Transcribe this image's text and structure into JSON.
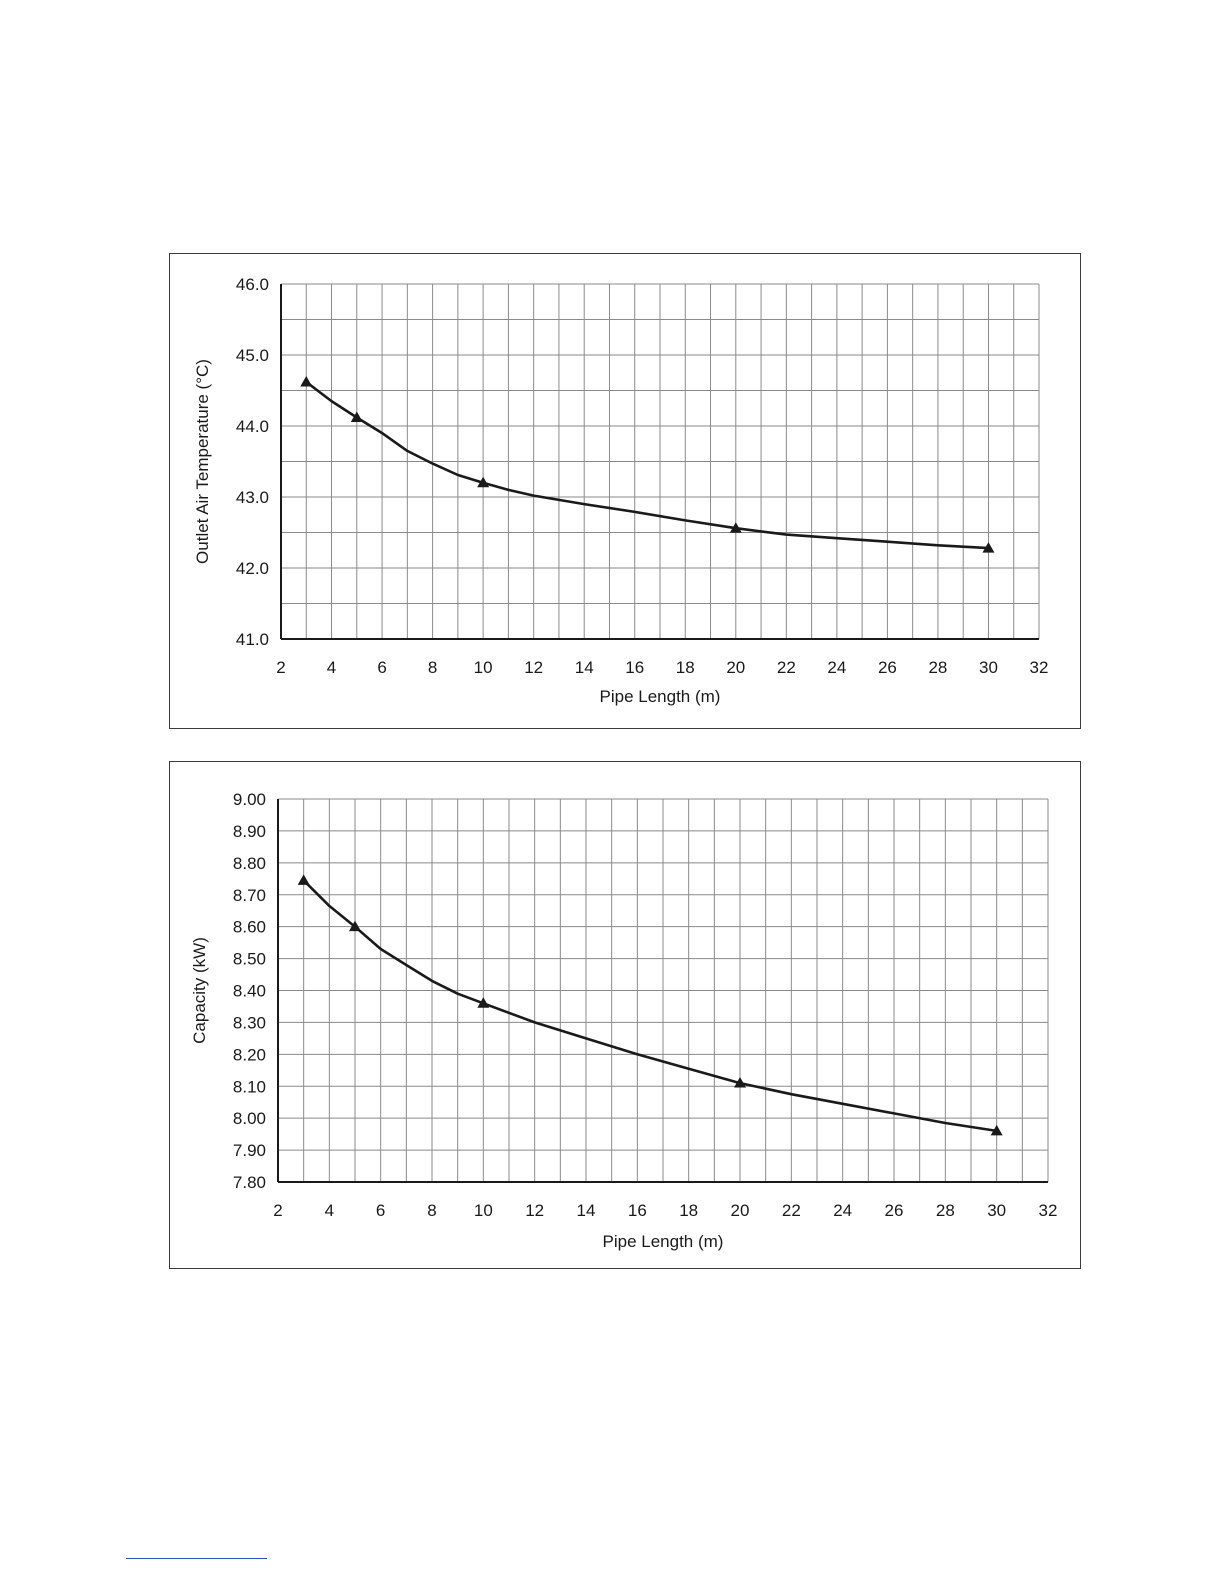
{
  "chart_data": [
    {
      "type": "line",
      "xlabel": "Pipe Length (m)",
      "ylabel": "Outlet Air Temperature (°C)",
      "xlim": [
        2,
        32
      ],
      "ylim": [
        41.0,
        46.0
      ],
      "x_ticks": [
        "2",
        "4",
        "6",
        "8",
        "10",
        "12",
        "14",
        "16",
        "18",
        "20",
        "22",
        "24",
        "26",
        "28",
        "30",
        "32"
      ],
      "y_ticks": [
        "41.0",
        "42.0",
        "43.0",
        "44.0",
        "45.0",
        "46.0"
      ],
      "grid_x_step": 1,
      "grid_y_step": 0.5,
      "grid": true,
      "marker": "triangle",
      "series": [
        {
          "markers": {
            "x": [
              3,
              5,
              10,
              20,
              30
            ],
            "y": [
              44.62,
              44.12,
              43.2,
              42.56,
              42.28
            ]
          },
          "curve": {
            "x": [
              3,
              4,
              5,
              6,
              7,
              8,
              9,
              10,
              11,
              12,
              14,
              16,
              18,
              20,
              22,
              24,
              26,
              28,
              30
            ],
            "y": [
              44.62,
              44.35,
              44.12,
              43.9,
              43.65,
              43.47,
              43.31,
              43.2,
              43.1,
              43.02,
              42.9,
              42.79,
              42.67,
              42.56,
              42.47,
              42.42,
              42.37,
              42.32,
              42.28
            ]
          }
        }
      ]
    },
    {
      "type": "line",
      "xlabel": "Pipe Length (m)",
      "ylabel": "Capacity (kW)",
      "xlim": [
        2,
        32
      ],
      "ylim": [
        7.8,
        9.0
      ],
      "x_ticks": [
        "2",
        "4",
        "6",
        "8",
        "10",
        "12",
        "14",
        "16",
        "18",
        "20",
        "22",
        "24",
        "26",
        "28",
        "30",
        "32"
      ],
      "y_ticks": [
        "7.80",
        "7.90",
        "8.00",
        "8.10",
        "8.20",
        "8.30",
        "8.40",
        "8.50",
        "8.60",
        "8.70",
        "8.80",
        "8.90",
        "9.00"
      ],
      "grid_x_step": 1,
      "grid_y_step": 0.1,
      "grid": true,
      "marker": "triangle",
      "series": [
        {
          "markers": {
            "x": [
              3,
              5,
              10,
              20,
              30
            ],
            "y": [
              8.745,
              8.6,
              8.36,
              8.11,
              7.96
            ]
          },
          "curve": {
            "x": [
              3,
              4,
              5,
              6,
              7,
              8,
              9,
              10,
              12,
              14,
              16,
              18,
              20,
              22,
              24,
              26,
              28,
              30
            ],
            "y": [
              8.745,
              8.665,
              8.6,
              8.53,
              8.48,
              8.43,
              8.39,
              8.36,
              8.3,
              8.25,
              8.2,
              8.155,
              8.11,
              8.075,
              8.045,
              8.015,
              7.985,
              7.96
            ]
          }
        }
      ]
    }
  ]
}
